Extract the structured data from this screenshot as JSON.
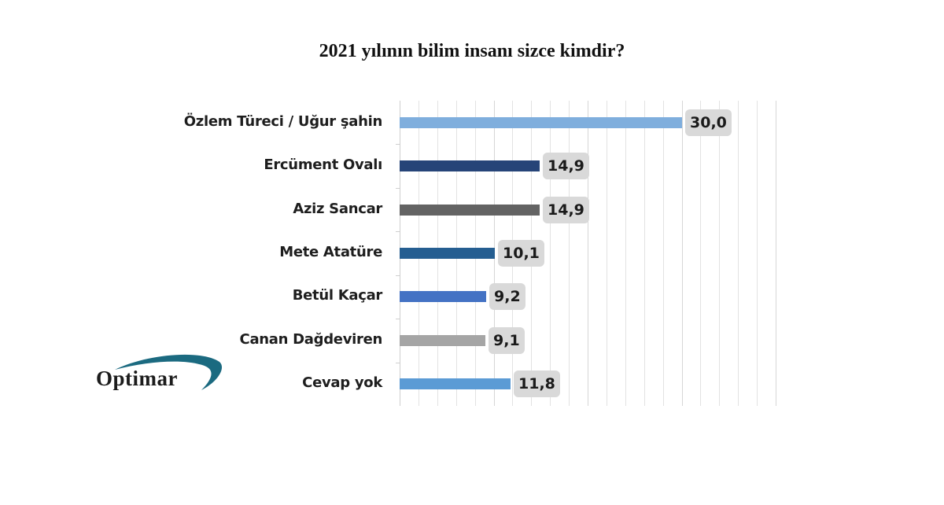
{
  "chart_data": {
    "type": "bar",
    "orientation": "horizontal",
    "title": "2021 yılının bilim insanı sizce kimdir?",
    "xlabel": "",
    "ylabel": "",
    "xlim": [
      0,
      40
    ],
    "grid": true,
    "legend": null,
    "categories": [
      "Özlem Türeci / Uğur şahin",
      "Ercüment Ovalı",
      "Aziz Sancar",
      "Mete Atatüre",
      "Betül Kaçar",
      "Canan Dağdeviren",
      "Cevap yok"
    ],
    "values": [
      30.0,
      14.9,
      14.9,
      10.1,
      9.2,
      9.1,
      11.8
    ],
    "value_labels": [
      "30,0",
      "14,9",
      "14,9",
      "10,1",
      "9,2",
      "9,1",
      "11,8"
    ],
    "colors": [
      "#7FAEDD",
      "#264478",
      "#636363",
      "#255E91",
      "#4472C4",
      "#A5A5A5",
      "#5B9BD5"
    ]
  },
  "logo": {
    "text": "Optimar",
    "swoosh_color": "#1B6A80"
  }
}
